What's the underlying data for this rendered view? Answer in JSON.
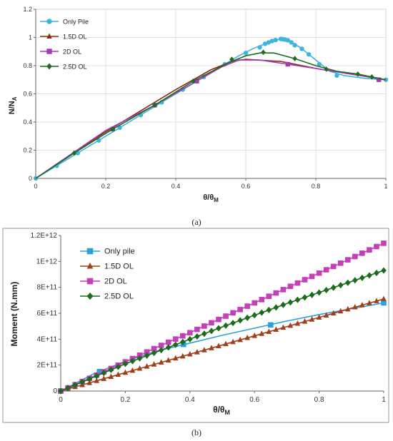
{
  "chart_data": [
    {
      "type": "line",
      "caption": "(a)",
      "xlabel": "θ/θ",
      "xlabel_sub": "M",
      "ylabel": "N/N",
      "ylabel_sub": "A",
      "xlim": [
        0,
        1
      ],
      "ylim": [
        0,
        1.2
      ],
      "xticks": [
        "0",
        "0.2",
        "0.4",
        "0.6",
        "0.8",
        "1"
      ],
      "yticks": [
        "0",
        "0.2",
        "0.4",
        "0.6",
        "0.8",
        "1",
        "1.2"
      ],
      "xtick_values": [
        0,
        0.2,
        0.4,
        0.6,
        0.8,
        1
      ],
      "ytick_values": [
        0,
        0.2,
        0.4,
        0.6,
        0.8,
        1,
        1.2
      ],
      "grid": true,
      "legend_position": "top-left",
      "series": [
        {
          "name": "Only Pile",
          "color": "#3fb4e0",
          "marker": "circle",
          "line": [
            [
              0,
              0
            ],
            [
              0.06,
              0.09
            ],
            [
              0.12,
              0.18
            ],
            [
              0.18,
              0.27
            ],
            [
              0.24,
              0.36
            ],
            [
              0.3,
              0.45
            ],
            [
              0.36,
              0.54
            ],
            [
              0.42,
              0.63
            ],
            [
              0.48,
              0.72
            ],
            [
              0.54,
              0.81
            ],
            [
              0.58,
              0.87
            ],
            [
              0.62,
              0.92
            ],
            [
              0.66,
              0.96
            ],
            [
              0.7,
              0.99
            ],
            [
              0.73,
              0.97
            ],
            [
              0.76,
              0.92
            ],
            [
              0.8,
              0.84
            ],
            [
              0.84,
              0.76
            ],
            [
              0.88,
              0.73
            ],
            [
              0.94,
              0.71
            ],
            [
              1.0,
              0.7
            ]
          ],
          "markers": [
            [
              0,
              0
            ],
            [
              0.06,
              0.09
            ],
            [
              0.12,
              0.18
            ],
            [
              0.18,
              0.27
            ],
            [
              0.24,
              0.36
            ],
            [
              0.3,
              0.45
            ],
            [
              0.36,
              0.54
            ],
            [
              0.42,
              0.63
            ],
            [
              0.48,
              0.72
            ],
            [
              0.54,
              0.81
            ],
            [
              0.6,
              0.89
            ],
            [
              0.64,
              0.93
            ],
            [
              0.655,
              0.955
            ],
            [
              0.665,
              0.965
            ],
            [
              0.675,
              0.975
            ],
            [
              0.685,
              0.982
            ],
            [
              0.7,
              0.99
            ],
            [
              0.705,
              0.988
            ],
            [
              0.712,
              0.985
            ],
            [
              0.72,
              0.98
            ],
            [
              0.73,
              0.965
            ],
            [
              0.74,
              0.945
            ],
            [
              0.76,
              0.92
            ],
            [
              0.78,
              0.88
            ],
            [
              0.81,
              0.81
            ],
            [
              0.86,
              0.73
            ],
            [
              1.0,
              0.7
            ]
          ]
        },
        {
          "name": "1.5D OL",
          "color": "#8b2a10",
          "marker": "triangle",
          "line": [
            [
              0,
              0
            ],
            [
              0.1,
              0.17
            ],
            [
              0.2,
              0.33
            ],
            [
              0.3,
              0.48
            ],
            [
              0.4,
              0.63
            ],
            [
              0.5,
              0.77
            ],
            [
              0.56,
              0.83
            ],
            [
              0.6,
              0.845
            ],
            [
              0.7,
              0.83
            ],
            [
              0.8,
              0.78
            ],
            [
              0.9,
              0.74
            ],
            [
              1.0,
              0.7
            ]
          ],
          "markers": []
        },
        {
          "name": "2D OL",
          "color": "#a23ab5",
          "marker": "square",
          "line": [
            [
              0,
              0
            ],
            [
              0.1,
              0.17
            ],
            [
              0.2,
              0.34
            ],
            [
              0.34,
              0.52
            ],
            [
              0.46,
              0.69
            ],
            [
              0.53,
              0.79
            ],
            [
              0.58,
              0.84
            ],
            [
              0.64,
              0.84
            ],
            [
              0.72,
              0.81
            ],
            [
              0.8,
              0.78
            ],
            [
              0.9,
              0.74
            ],
            [
              1.0,
              0.7
            ]
          ],
          "markers": [
            [
              0.22,
              0.35
            ],
            [
              0.34,
              0.52
            ],
            [
              0.46,
              0.69
            ],
            [
              0.72,
              0.81
            ],
            [
              0.98,
              0.7
            ]
          ]
        },
        {
          "name": "2.5D OL",
          "color": "#1f6b1f",
          "marker": "diamond",
          "line": [
            [
              0,
              0
            ],
            [
              0.11,
              0.18
            ],
            [
              0.22,
              0.35
            ],
            [
              0.34,
              0.52
            ],
            [
              0.45,
              0.69
            ],
            [
              0.55,
              0.82
            ],
            [
              0.6,
              0.87
            ],
            [
              0.64,
              0.89
            ],
            [
              0.68,
              0.89
            ],
            [
              0.74,
              0.85
            ],
            [
              0.8,
              0.8
            ],
            [
              0.86,
              0.76
            ],
            [
              0.92,
              0.74
            ],
            [
              1.0,
              0.7
            ]
          ],
          "markers": [
            [
              0.11,
              0.18
            ],
            [
              0.22,
              0.35
            ],
            [
              0.34,
              0.52
            ],
            [
              0.45,
              0.69
            ],
            [
              0.56,
              0.845
            ],
            [
              0.65,
              0.895
            ],
            [
              0.74,
              0.85
            ],
            [
              0.83,
              0.775
            ],
            [
              0.92,
              0.74
            ],
            [
              0.96,
              0.72
            ]
          ]
        }
      ]
    },
    {
      "type": "line",
      "caption": "(b)",
      "xlabel": "θ/θ",
      "xlabel_sub": "M",
      "ylabel": "Moment (N.mm)",
      "xlim": [
        0,
        1
      ],
      "ylim": [
        0,
        1200000000000.0
      ],
      "xticks": [
        "0",
        "0.2",
        "0.4",
        "0.6",
        "0.8",
        "1"
      ],
      "yticks": [
        "0",
        "2E+11",
        "4E+11",
        "6E+11",
        "8E+11",
        "1E+12",
        "1.2E+12"
      ],
      "xtick_values": [
        0,
        0.2,
        0.4,
        0.6,
        0.8,
        1
      ],
      "ytick_values": [
        0,
        200000000000.0,
        400000000000.0,
        600000000000.0,
        800000000000.0,
        1000000000000.0,
        1200000000000.0
      ],
      "grid": false,
      "legend_position": "top-left",
      "series": [
        {
          "name": "Only pile",
          "color": "#2aa0dc",
          "marker": "square",
          "line": [
            [
              0,
              0
            ],
            [
              0.1,
              130000000000.0
            ],
            [
              0.2,
              230000000000.0
            ],
            [
              0.3,
              310000000000.0
            ],
            [
              0.4,
              370000000000.0
            ],
            [
              0.5,
              430000000000.0
            ],
            [
              0.6,
              485000000000.0
            ],
            [
              0.7,
              540000000000.0
            ],
            [
              0.8,
              590000000000.0
            ],
            [
              0.9,
              635000000000.0
            ],
            [
              1.0,
              680000000000.0
            ]
          ],
          "markers": [
            [
              0,
              0
            ],
            [
              0.12,
              150000000000.0
            ],
            [
              0.38,
              360000000000.0
            ],
            [
              0.65,
              510000000000.0
            ],
            [
              1.0,
              680000000000.0
            ]
          ]
        },
        {
          "name": "1.5D OL",
          "color": "#a0401a",
          "marker": "triangle",
          "line": [
            [
              0,
              0
            ],
            [
              1.0,
              710000000000.0
            ]
          ],
          "markers": []
        },
        {
          "name": "2D OL",
          "color": "#c43fb8",
          "marker": "square",
          "line": [
            [
              0,
              0
            ],
            [
              0.1,
              110000000000.0
            ],
            [
              0.2,
              225000000000.0
            ],
            [
              0.3,
              340000000000.0
            ],
            [
              0.4,
              450000000000.0
            ],
            [
              0.5,
              565000000000.0
            ],
            [
              0.6,
              680000000000.0
            ],
            [
              0.7,
              795000000000.0
            ],
            [
              0.8,
              910000000000.0
            ],
            [
              0.9,
              1025000000000.0
            ],
            [
              1.0,
              1140000000000.0
            ]
          ],
          "markers": []
        },
        {
          "name": "2.5D OL",
          "color": "#1a6b1a",
          "marker": "diamond",
          "line": [
            [
              0,
              0
            ],
            [
              0.1,
              105000000000.0
            ],
            [
              0.2,
              210000000000.0
            ],
            [
              0.3,
              305000000000.0
            ],
            [
              0.4,
              400000000000.0
            ],
            [
              0.5,
              495000000000.0
            ],
            [
              0.6,
              585000000000.0
            ],
            [
              0.7,
              675000000000.0
            ],
            [
              0.8,
              760000000000.0
            ],
            [
              0.9,
              845000000000.0
            ],
            [
              1.0,
              930000000000.0
            ]
          ],
          "markers": []
        }
      ]
    }
  ]
}
